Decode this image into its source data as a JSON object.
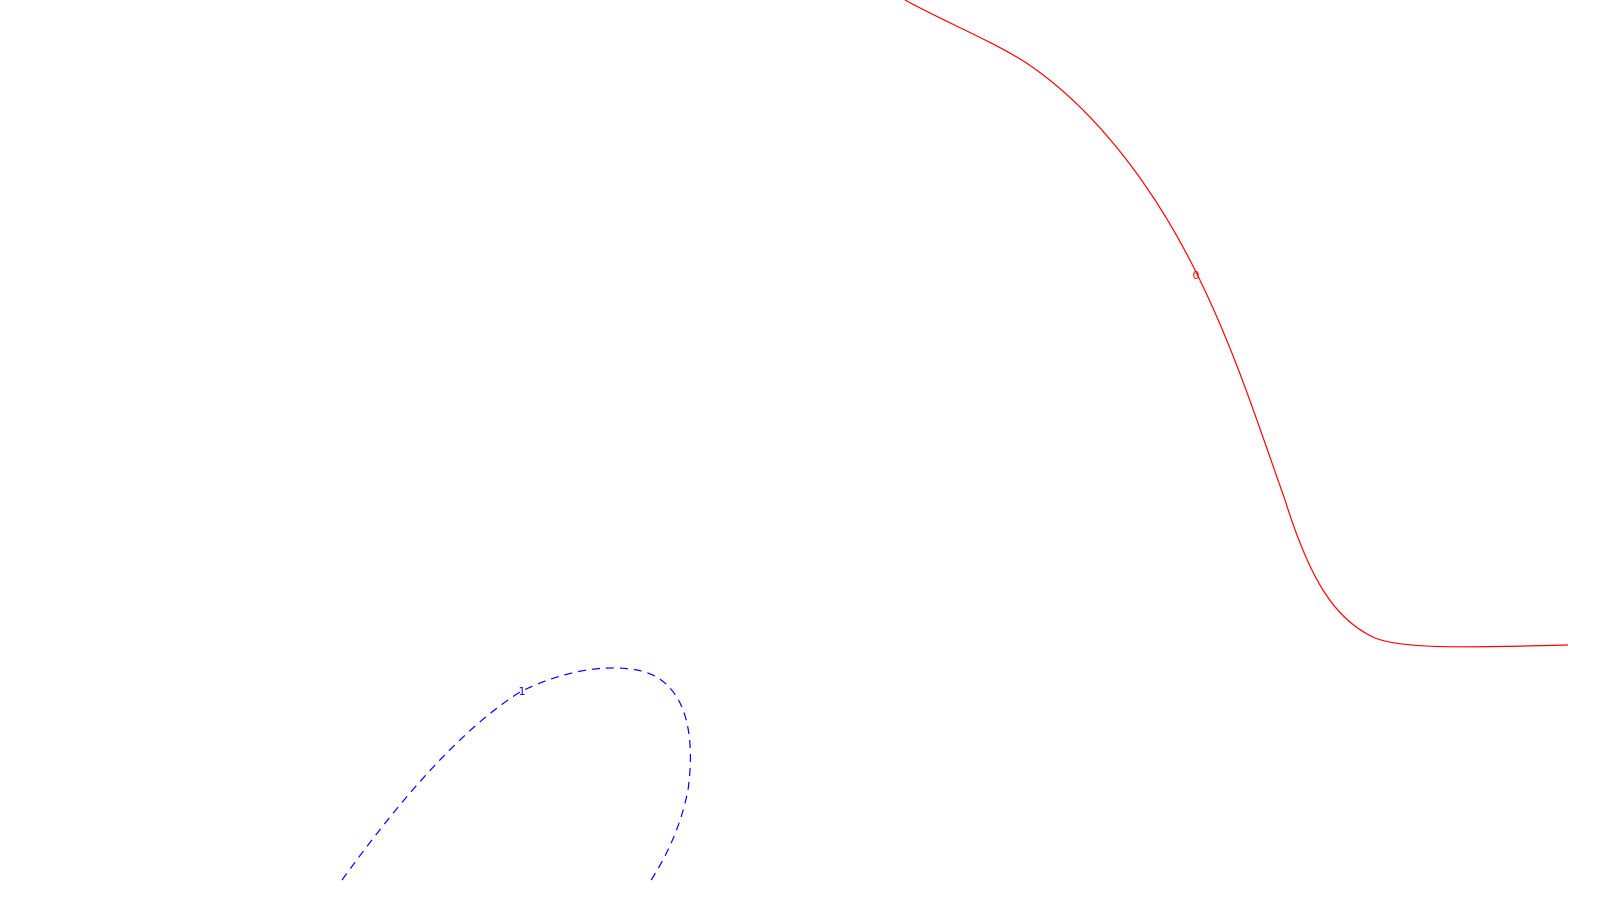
{
  "chart_data": {
    "type": "contour",
    "title": "",
    "xlabel": "",
    "ylabel": "",
    "grid": false,
    "legend": "none",
    "series": [
      {
        "label": "0",
        "color": "#ff0000",
        "style": "solid"
      },
      {
        "label": "1",
        "color": "#0000ff",
        "style": "dashed"
      }
    ]
  }
}
